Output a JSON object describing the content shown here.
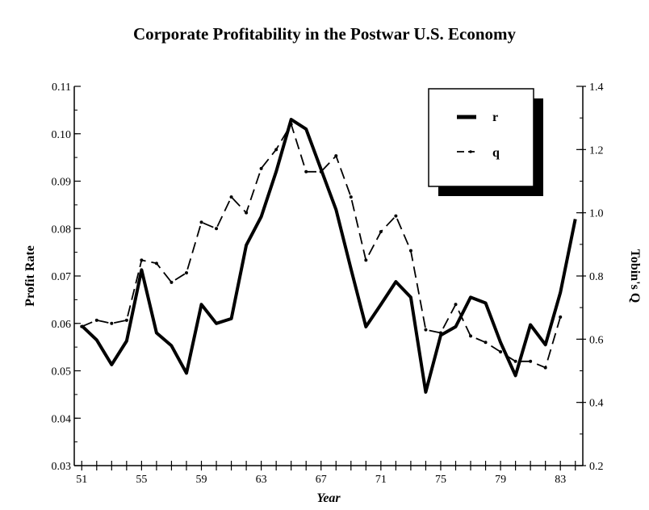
{
  "chart_data": {
    "type": "line",
    "title": "Corporate Profitability in the Postwar U.S. Economy",
    "xlabel": "Year",
    "ylabel_left": "Profit Rate",
    "ylabel_right": "Tobin's Q",
    "x_ticks": [
      "51",
      "55",
      "59",
      "63",
      "67",
      "71",
      "75",
      "79",
      "83"
    ],
    "y_left_ticks": [
      "0.03",
      "0.04",
      "0.05",
      "0.06",
      "0.07",
      "0.08",
      "0.09",
      "0.10",
      "0.11"
    ],
    "y_right_ticks": [
      "0.2",
      "0.4",
      "0.6",
      "0.8",
      "1.0",
      "1.2",
      "1.4"
    ],
    "xlim": [
      50.5,
      84.5
    ],
    "ylim_left": [
      0.03,
      0.11
    ],
    "ylim_right": [
      0.2,
      1.4
    ],
    "legend_position": "top-right",
    "x": [
      51,
      52,
      53,
      54,
      55,
      56,
      57,
      58,
      59,
      60,
      61,
      62,
      63,
      64,
      65,
      66,
      67,
      68,
      69,
      70,
      71,
      72,
      73,
      74,
      75,
      76,
      77,
      78,
      79,
      80,
      81,
      82,
      83,
      84
    ],
    "series": [
      {
        "name": "r",
        "axis": "left",
        "style": "solid",
        "values": [
          0.0595,
          0.0565,
          0.0513,
          0.0563,
          0.0713,
          0.058,
          0.0553,
          0.0495,
          0.064,
          0.06,
          0.061,
          0.0765,
          0.0825,
          0.092,
          0.103,
          0.101,
          0.0925,
          0.084,
          0.0715,
          0.0593,
          0.064,
          0.0688,
          0.0655,
          0.0455,
          0.0575,
          0.0593,
          0.0655,
          0.0643,
          0.056,
          0.049,
          0.0597,
          0.0555,
          0.0665,
          0.082
        ]
      },
      {
        "name": "q",
        "axis": "right",
        "style": "dashed",
        "values": [
          0.64,
          0.66,
          0.65,
          0.66,
          0.85,
          0.84,
          0.78,
          0.81,
          0.97,
          0.95,
          1.05,
          1.0,
          1.14,
          1.2,
          1.28,
          1.13,
          1.13,
          1.18,
          1.05,
          0.85,
          0.94,
          0.99,
          0.88,
          0.63,
          0.62,
          0.71,
          0.61,
          0.59,
          0.56,
          0.53,
          0.53,
          0.51,
          0.67,
          null
        ]
      }
    ]
  }
}
